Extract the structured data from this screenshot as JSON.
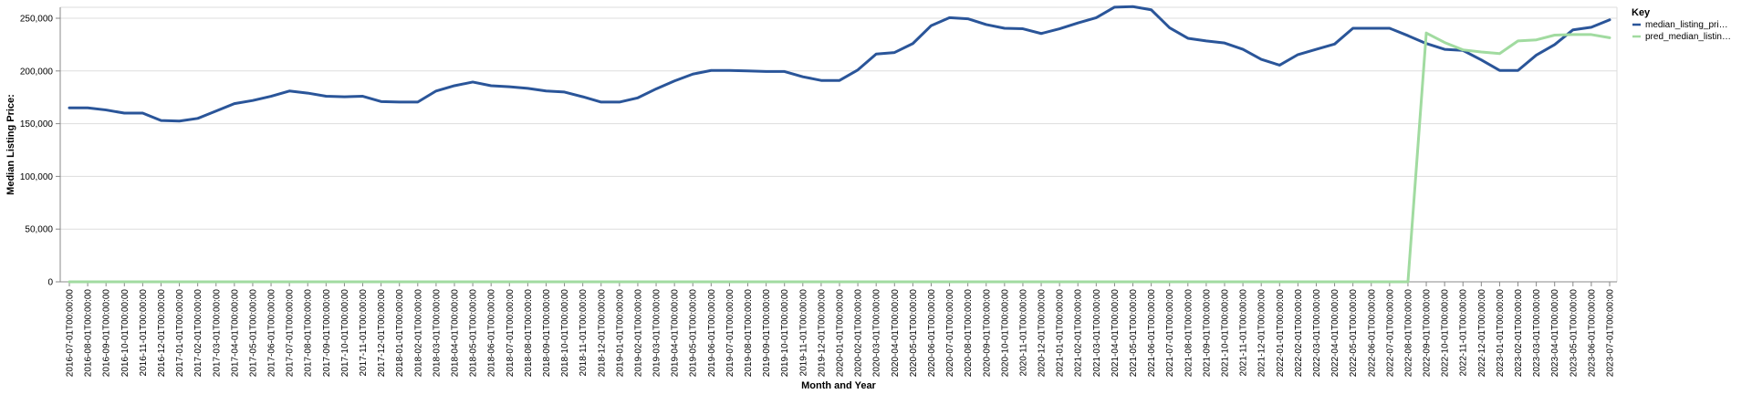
{
  "chart_data": {
    "type": "line",
    "title": "",
    "xlabel": "Month and Year",
    "ylabel": "Median Listing Price:",
    "ylim": [
      0,
      250000
    ],
    "yticks": [
      "0",
      "50,000",
      "100,000",
      "150,000",
      "200,000",
      "250,000"
    ],
    "ytick_values": [
      0,
      50000,
      100000,
      150000,
      200000,
      250000
    ],
    "grid": true,
    "legend": {
      "title": "Key",
      "position": "top-right"
    },
    "x": [
      "2016-07-01T00:00:00",
      "2016-08-01T00:00:00",
      "2016-09-01T00:00:00",
      "2016-10-01T00:00:00",
      "2016-11-01T00:00:00",
      "2016-12-01T00:00:00",
      "2017-01-01T00:00:00",
      "2017-02-01T00:00:00",
      "2017-03-01T00:00:00",
      "2017-04-01T00:00:00",
      "2017-05-01T00:00:00",
      "2017-06-01T00:00:00",
      "2017-07-01T00:00:00",
      "2017-08-01T00:00:00",
      "2017-09-01T00:00:00",
      "2017-10-01T00:00:00",
      "2017-11-01T00:00:00",
      "2017-12-01T00:00:00",
      "2018-01-01T00:00:00",
      "2018-02-01T00:00:00",
      "2018-03-01T00:00:00",
      "2018-04-01T00:00:00",
      "2018-05-01T00:00:00",
      "2018-06-01T00:00:00",
      "2018-07-01T00:00:00",
      "2018-08-01T00:00:00",
      "2018-09-01T00:00:00",
      "2018-10-01T00:00:00",
      "2018-11-01T00:00:00",
      "2018-12-01T00:00:00",
      "2019-01-01T00:00:00",
      "2019-02-01T00:00:00",
      "2019-03-01T00:00:00",
      "2019-04-01T00:00:00",
      "2019-05-01T00:00:00",
      "2019-06-01T00:00:00",
      "2019-07-01T00:00:00",
      "2019-08-01T00:00:00",
      "2019-09-01T00:00:00",
      "2019-10-01T00:00:00",
      "2019-11-01T00:00:00",
      "2019-12-01T00:00:00",
      "2020-01-01T00:00:00",
      "2020-02-01T00:00:00",
      "2020-03-01T00:00:00",
      "2020-04-01T00:00:00",
      "2020-05-01T00:00:00",
      "2020-06-01T00:00:00",
      "2020-07-01T00:00:00",
      "2020-08-01T00:00:00",
      "2020-09-01T00:00:00",
      "2020-10-01T00:00:00",
      "2020-11-01T00:00:00",
      "2020-12-01T00:00:00",
      "2021-01-01T00:00:00",
      "2021-02-01T00:00:00",
      "2021-03-01T00:00:00",
      "2021-04-01T00:00:00",
      "2021-05-01T00:00:00",
      "2021-06-01T00:00:00",
      "2021-07-01T00:00:00",
      "2021-08-01T00:00:00",
      "2021-09-01T00:00:00",
      "2021-10-01T00:00:00",
      "2021-11-01T00:00:00",
      "2021-12-01T00:00:00",
      "2022-01-01T00:00:00",
      "2022-02-01T00:00:00",
      "2022-03-01T00:00:00",
      "2022-04-01T00:00:00",
      "2022-05-01T00:00:00",
      "2022-06-01T00:00:00",
      "2022-07-01T00:00:00",
      "2022-08-01T00:00:00",
      "2022-09-01T00:00:00",
      "2022-10-01T00:00:00",
      "2022-11-01T00:00:00",
      "2022-12-01T00:00:00",
      "2023-01-01T00:00:00",
      "2023-02-01T00:00:00",
      "2023-03-01T00:00:00",
      "2023-04-01T00:00:00",
      "2023-05-01T00:00:00",
      "2023-06-01T00:00:00",
      "2023-07-01T00:00:00"
    ],
    "series": [
      {
        "name": "median_listing_pri…",
        "color": "#2a5599",
        "values": [
          165000,
          165000,
          163000,
          160000,
          160000,
          153000,
          152500,
          155000,
          162000,
          169000,
          172000,
          176000,
          181000,
          179000,
          176000,
          175500,
          176000,
          171000,
          170500,
          170500,
          181000,
          186000,
          189500,
          186000,
          185000,
          183500,
          181000,
          180000,
          175500,
          170500,
          170500,
          174500,
          183000,
          190500,
          197000,
          200500,
          200500,
          200000,
          199500,
          199500,
          194500,
          191000,
          191000,
          201000,
          216000,
          217500,
          226000,
          243000,
          250500,
          249500,
          244000,
          240500,
          240000,
          235500,
          240000,
          245500,
          250500,
          260500,
          261000,
          258000,
          241000,
          231000,
          228500,
          226500,
          220500,
          211000,
          205500,
          215500,
          220500,
          225500,
          240500,
          240500,
          240500,
          233500,
          226000,
          220500,
          219500,
          210500,
          200500,
          200500,
          215000,
          225000,
          239000,
          241500,
          248500
        ]
      },
      {
        "name": "pred_median_listin…",
        "color": "#a1dba0",
        "values": [
          0,
          0,
          0,
          0,
          0,
          0,
          0,
          0,
          0,
          0,
          0,
          0,
          0,
          0,
          0,
          0,
          0,
          0,
          0,
          0,
          0,
          0,
          0,
          0,
          0,
          0,
          0,
          0,
          0,
          0,
          0,
          0,
          0,
          0,
          0,
          0,
          0,
          0,
          0,
          0,
          0,
          0,
          0,
          0,
          0,
          0,
          0,
          0,
          0,
          0,
          0,
          0,
          0,
          0,
          0,
          0,
          0,
          0,
          0,
          0,
          0,
          0,
          0,
          0,
          0,
          0,
          0,
          0,
          0,
          0,
          0,
          0,
          0,
          0,
          236000,
          227000,
          220000,
          218000,
          216500,
          228500,
          229500,
          234000,
          234500,
          234500,
          231500
        ]
      }
    ]
  }
}
